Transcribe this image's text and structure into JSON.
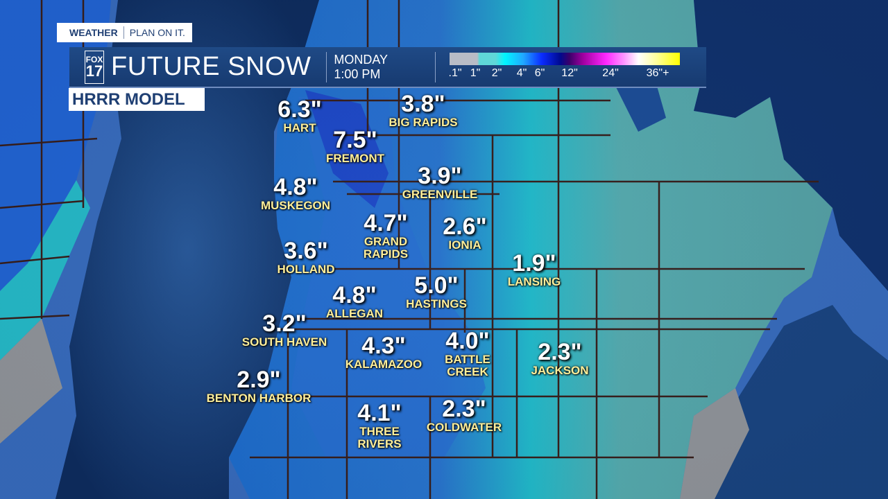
{
  "brand": {
    "tag_bold": "WEATHER",
    "tag_slogan": "PLAN ON IT.",
    "logo_top": "FOX",
    "logo_bottom": "17"
  },
  "header": {
    "title": "FUTURE SNOW",
    "day": "MONDAY",
    "time": "1:00 PM"
  },
  "model_label": "HRRR MODEL",
  "legend": {
    "ticks": [
      ".1\"",
      "1\"",
      "2\"",
      "4\"",
      "6\"",
      "12\"",
      "24\"",
      "36\"+"
    ],
    "colors": [
      "#b8bcc6",
      "#5fd8d8",
      "#00f5ff",
      "#0a2cff",
      "#000a90",
      "#a000a0",
      "#ff28ff",
      "#ffffff",
      "#ffff00"
    ]
  },
  "cities": [
    {
      "name": "HART",
      "snow": "6.3\""
    },
    {
      "name": "BIG RAPIDS",
      "snow": "3.8\""
    },
    {
      "name": "FREMONT",
      "snow": "7.5\""
    },
    {
      "name": "GREENVILLE",
      "snow": "3.9\""
    },
    {
      "name": "MUSKEGON",
      "snow": "4.8\""
    },
    {
      "name": "GRAND RAPIDS",
      "snow": "4.7\""
    },
    {
      "name": "IONIA",
      "snow": "2.6\""
    },
    {
      "name": "LANSING",
      "snow": "1.9\""
    },
    {
      "name": "HOLLAND",
      "snow": "3.6\""
    },
    {
      "name": "ALLEGAN",
      "snow": "4.8\""
    },
    {
      "name": "HASTINGS",
      "snow": "5.0\""
    },
    {
      "name": "SOUTH HAVEN",
      "snow": "3.2\""
    },
    {
      "name": "KALAMAZOO",
      "snow": "4.3\""
    },
    {
      "name": "BATTLE CREEK",
      "snow": "4.0\""
    },
    {
      "name": "JACKSON",
      "snow": "2.3\""
    },
    {
      "name": "BENTON HARBOR",
      "snow": "2.9\""
    },
    {
      "name": "THREE RIVERS",
      "snow": "4.1\""
    },
    {
      "name": "COLDWATER",
      "snow": "2.3\""
    }
  ]
}
